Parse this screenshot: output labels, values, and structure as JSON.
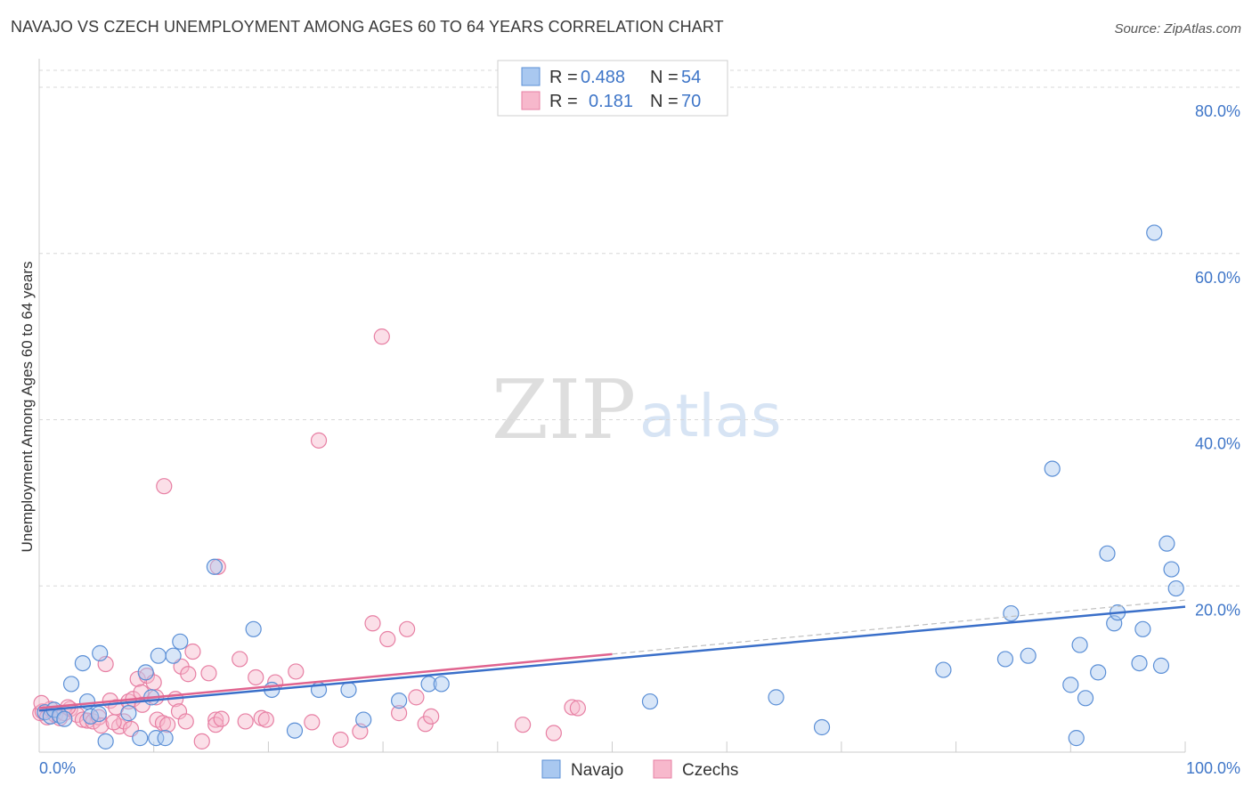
{
  "chart_data": {
    "type": "scatter",
    "title": "NAVAJO VS CZECH UNEMPLOYMENT AMONG AGES 60 TO 64 YEARS CORRELATION CHART",
    "source": "Source: ZipAtlas.com",
    "watermark": {
      "zip": "ZIP",
      "atlas": "atlas"
    },
    "ylabel": "Unemployment Among Ages 60 to 64 years",
    "xlim": [
      0,
      100
    ],
    "ylim": [
      0,
      83
    ],
    "y_ticks": [
      20,
      40,
      60,
      80
    ],
    "y_tick_labels": [
      "20.0%",
      "40.0%",
      "60.0%",
      "80.0%"
    ],
    "x_tick_labels": [
      "0.0%",
      "100.0%"
    ],
    "grid": true,
    "colors": {
      "navajo_fill": "#a9c8f0",
      "navajo_stroke": "#5b8fd6",
      "navajo_line": "#3a6fc9",
      "czech_fill": "#f7b8cc",
      "czech_stroke": "#e77fa3",
      "czech_line": "#e0648f",
      "value_text": "#3f76c8",
      "grid": "#d8d8d8"
    },
    "stats": [
      {
        "name": "Navajo",
        "r_label": "R =",
        "r_value": "0.488",
        "n_label": "N =",
        "n_value": "54"
      },
      {
        "name": "Czechs",
        "r_label": "R =",
        "r_value": "0.181",
        "n_label": "N =",
        "n_value": "70"
      }
    ],
    "series": [
      {
        "name": "Navajo",
        "trend": {
          "x": [
            0,
            100
          ],
          "y": [
            5.0,
            17.5
          ]
        },
        "points": [
          [
            0.5,
            4.8
          ],
          [
            1.0,
            4.3
          ],
          [
            1.3,
            5.1
          ],
          [
            1.8,
            4.4
          ],
          [
            2.2,
            4.0
          ],
          [
            2.8,
            8.2
          ],
          [
            3.8,
            10.7
          ],
          [
            4.2,
            6.1
          ],
          [
            4.5,
            4.3
          ],
          [
            5.2,
            4.6
          ],
          [
            5.3,
            11.9
          ],
          [
            5.8,
            1.3
          ],
          [
            7.8,
            4.7
          ],
          [
            8.8,
            1.7
          ],
          [
            9.3,
            9.6
          ],
          [
            9.8,
            6.6
          ],
          [
            10.2,
            1.7
          ],
          [
            10.4,
            11.6
          ],
          [
            11.0,
            1.7
          ],
          [
            11.7,
            11.6
          ],
          [
            12.3,
            13.3
          ],
          [
            15.3,
            22.3
          ],
          [
            18.7,
            14.8
          ],
          [
            20.3,
            7.5
          ],
          [
            22.3,
            2.6
          ],
          [
            24.4,
            7.5
          ],
          [
            27.0,
            7.5
          ],
          [
            28.3,
            3.9
          ],
          [
            31.4,
            6.2
          ],
          [
            34.0,
            8.2
          ],
          [
            35.1,
            8.2
          ],
          [
            53.3,
            6.1
          ],
          [
            64.3,
            6.6
          ],
          [
            68.3,
            3.0
          ],
          [
            78.9,
            9.9
          ],
          [
            84.3,
            11.2
          ],
          [
            84.8,
            16.7
          ],
          [
            86.3,
            11.6
          ],
          [
            88.4,
            34.1
          ],
          [
            90.0,
            8.1
          ],
          [
            90.5,
            1.7
          ],
          [
            90.8,
            12.9
          ],
          [
            91.3,
            6.5
          ],
          [
            92.4,
            9.6
          ],
          [
            93.2,
            23.9
          ],
          [
            93.8,
            15.5
          ],
          [
            94.1,
            16.8
          ],
          [
            96.0,
            10.7
          ],
          [
            96.3,
            14.8
          ],
          [
            97.3,
            62.5
          ],
          [
            97.9,
            10.4
          ],
          [
            98.4,
            25.1
          ],
          [
            98.8,
            22.0
          ],
          [
            99.2,
            19.7
          ]
        ]
      },
      {
        "name": "Czechs",
        "trend": {
          "x": [
            0,
            50
          ],
          "y": [
            5.3,
            11.8
          ]
        },
        "points": [
          [
            0.1,
            4.7
          ],
          [
            0.3,
            4.9
          ],
          [
            0.7,
            4.2
          ],
          [
            1.0,
            5.2
          ],
          [
            1.4,
            4.5
          ],
          [
            1.8,
            4.1
          ],
          [
            2.2,
            4.7
          ],
          [
            2.7,
            5.2
          ],
          [
            3.3,
            4.5
          ],
          [
            3.8,
            3.9
          ],
          [
            4.2,
            3.8
          ],
          [
            4.7,
            3.7
          ],
          [
            5.2,
            4.2
          ],
          [
            5.4,
            3.2
          ],
          [
            5.8,
            10.6
          ],
          [
            6.2,
            6.2
          ],
          [
            6.7,
            5.4
          ],
          [
            7.0,
            3.1
          ],
          [
            7.4,
            3.7
          ],
          [
            7.8,
            6.1
          ],
          [
            8.2,
            6.4
          ],
          [
            8.6,
            8.8
          ],
          [
            8.9,
            7.2
          ],
          [
            9.0,
            5.7
          ],
          [
            9.4,
            9.2
          ],
          [
            10.0,
            8.4
          ],
          [
            10.2,
            6.6
          ],
          [
            10.3,
            3.9
          ],
          [
            10.8,
            3.5
          ],
          [
            10.9,
            32.0
          ],
          [
            11.2,
            3.3
          ],
          [
            11.9,
            6.4
          ],
          [
            12.2,
            4.9
          ],
          [
            12.4,
            10.3
          ],
          [
            12.8,
            3.7
          ],
          [
            13.0,
            9.4
          ],
          [
            13.4,
            12.1
          ],
          [
            14.2,
            1.3
          ],
          [
            14.8,
            9.5
          ],
          [
            15.4,
            3.9
          ],
          [
            15.4,
            3.3
          ],
          [
            15.6,
            22.3
          ],
          [
            15.9,
            4.0
          ],
          [
            17.5,
            11.2
          ],
          [
            18.0,
            3.7
          ],
          [
            18.9,
            9.0
          ],
          [
            19.4,
            4.1
          ],
          [
            19.8,
            3.9
          ],
          [
            20.6,
            8.4
          ],
          [
            22.4,
            9.7
          ],
          [
            23.8,
            3.6
          ],
          [
            24.4,
            37.5
          ],
          [
            26.3,
            1.5
          ],
          [
            28.0,
            2.5
          ],
          [
            29.1,
            15.5
          ],
          [
            29.9,
            50.0
          ],
          [
            30.4,
            13.6
          ],
          [
            31.4,
            4.7
          ],
          [
            32.1,
            14.8
          ],
          [
            32.9,
            6.6
          ],
          [
            33.7,
            3.4
          ],
          [
            34.2,
            4.3
          ],
          [
            42.2,
            3.3
          ],
          [
            44.9,
            2.3
          ],
          [
            46.5,
            5.4
          ],
          [
            47.0,
            5.3
          ],
          [
            0.2,
            5.9
          ],
          [
            2.5,
            5.4
          ],
          [
            6.5,
            3.6
          ],
          [
            8.0,
            2.8
          ]
        ]
      }
    ],
    "legend": [
      "Navajo",
      "Czechs"
    ]
  }
}
